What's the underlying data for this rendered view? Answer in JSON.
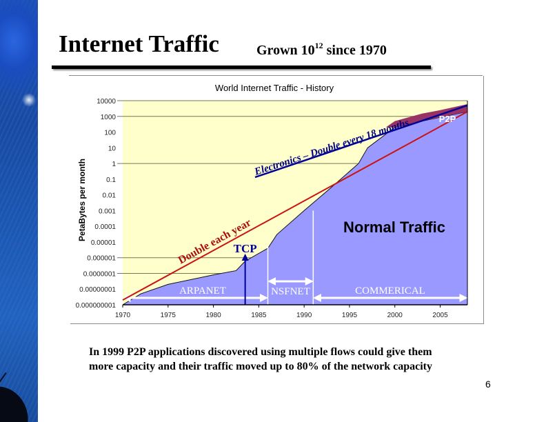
{
  "slide": {
    "title": "Internet Traffic",
    "subtitle_prefix": "Grown 10",
    "subtitle_exp": "12",
    "subtitle_suffix": " since 1970",
    "caption_line1": "In 1999 P2P applications discovered using multiple flows could give them",
    "caption_line2": "more capacity and their traffic moved up to 80% of the network capacity",
    "page_number": "6"
  },
  "colors": {
    "plot_bg": "#ffffcc",
    "normal_traffic": "#9999ff",
    "p2p": "#993366",
    "double_each_year_line": "#cc1111",
    "electronics_line": "#000099",
    "tcp_arrow": "#000099",
    "era_arrows": "#ffffff"
  },
  "chart_data": {
    "type": "area",
    "title": "World Internet Traffic -  History",
    "xlabel": "",
    "ylabel": "PetaBytes per month",
    "yscale": "log",
    "ylim": [
      1e-09,
      10000
    ],
    "xlim": [
      1970,
      2008
    ],
    "x_ticks": [
      "1970",
      "1975",
      "1980",
      "1985",
      "1990",
      "1995",
      "2000",
      "2005"
    ],
    "y_ticks": [
      "10000",
      "1000",
      "100",
      "10",
      "1",
      "0.1",
      "0.01",
      "0.001",
      "0.0001",
      "0.00001",
      "0.000001",
      "0.0000001",
      "0.00000001",
      "0.000000001"
    ],
    "grid": "horizontal lines at 10000, 1000, 1, 0.000001, 0.0000001",
    "legend": "none (inline labels)",
    "series": [
      {
        "name": "Normal Traffic",
        "x": [
          1970,
          1972,
          1975,
          1980,
          1982.5,
          1983.5,
          1986,
          1987,
          1990,
          1993,
          1996,
          1997,
          2000,
          2003,
          2008
        ],
        "values": [
          1e-09,
          5e-09,
          2e-08,
          8e-08,
          1.5e-07,
          6e-07,
          4e-06,
          3e-05,
          0.001,
          0.03,
          1,
          10,
          200,
          500,
          2000
        ]
      },
      {
        "name": "P2P",
        "x": [
          1999,
          2000,
          2003,
          2005,
          2008
        ],
        "values": [
          200,
          500,
          1500,
          2500,
          6000
        ]
      },
      {
        "name": "Double each year",
        "x": [
          1970,
          2008
        ],
        "values": [
          2e-09,
          2000
        ]
      },
      {
        "name": "Electronics - Double every 18 months",
        "x": [
          1986,
          2008
        ],
        "values": [
          0.2,
          5000
        ]
      }
    ],
    "annotations": [
      {
        "text": "P2P",
        "x": 2006,
        "y": 3000
      },
      {
        "text": "Normal Traffic",
        "x": 2000,
        "y": 0.0002
      },
      {
        "text": "Double each year",
        "x": 1978,
        "y": 1e-05
      },
      {
        "text": "Electronics – Double every 18 months",
        "x": 1995,
        "y": 10
      },
      {
        "text": "TCP",
        "x": 1983.5,
        "y": 3e-06
      }
    ],
    "eras": [
      {
        "label": "ARPANET",
        "start": 1970,
        "end": 1986
      },
      {
        "label": "NSFNET",
        "start": 1986,
        "end": 1991
      },
      {
        "label": "COMMERICAL",
        "start": 1991,
        "end": 2008
      }
    ]
  }
}
